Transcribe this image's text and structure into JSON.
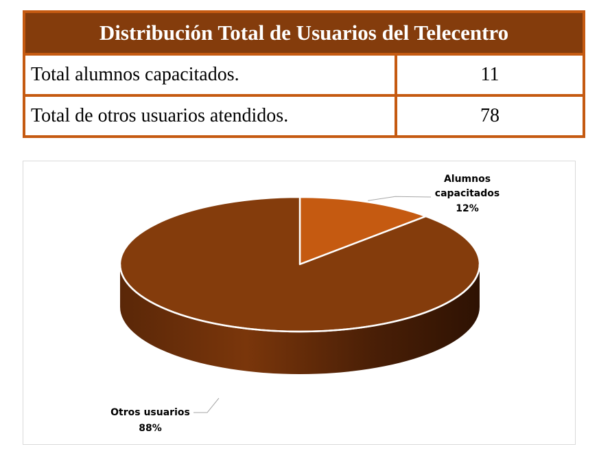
{
  "table": {
    "title": "Distribución Total de Usuarios del Telecentro",
    "rows": [
      {
        "label": "Total alumnos capacitados.",
        "value": "11"
      },
      {
        "label": "Total de otros usuarios atendidos.",
        "value": "78"
      }
    ]
  },
  "chart_data": {
    "type": "pie",
    "title": "",
    "slices": [
      {
        "name": "Alumnos capacitados",
        "value": 11,
        "percent_label": "12%",
        "color": "#c55a11"
      },
      {
        "name": "Otros usuarios",
        "value": 78,
        "percent_label": "88%",
        "color": "#843c0c"
      }
    ],
    "style": "3d",
    "labels": {
      "alumnos": [
        "Alumnos",
        "capacitados",
        "12%"
      ],
      "otros": [
        "Otros usuarios",
        "88%"
      ]
    }
  }
}
